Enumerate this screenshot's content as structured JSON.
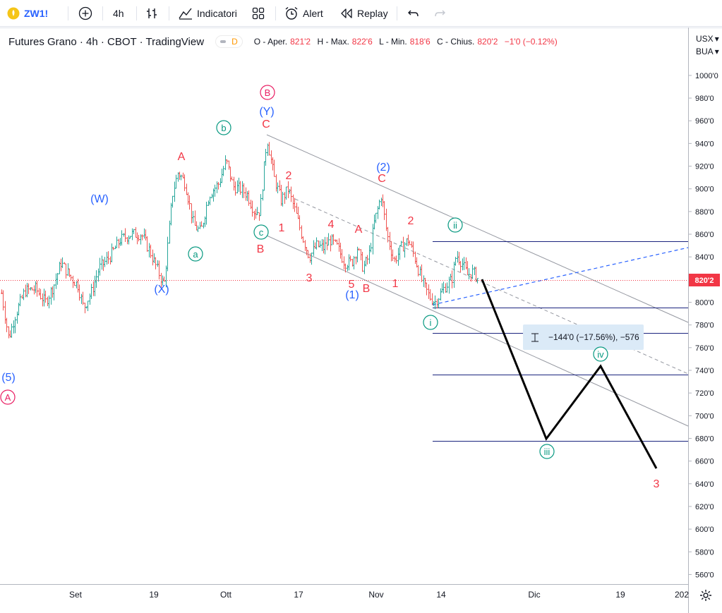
{
  "toolbar": {
    "symbol": "ZW1!",
    "interval": "4h",
    "indicators_label": "Indicatori",
    "alert_label": "Alert",
    "replay_label": "Replay",
    "icons": [
      "symbol-logo-icon",
      "add-symbol-icon",
      "bar-style-icon",
      "indicators-icon",
      "layouts-icon",
      "alert-icon",
      "replay-icon",
      "undo-icon",
      "redo-icon"
    ]
  },
  "legend": {
    "title": "Futures Grano · 4h · CBOT · TradingView",
    "badge_d": "D",
    "o_label": "O - Aper.",
    "o_value": "821'2",
    "h_label": "H - Max.",
    "h_value": "822'6",
    "l_label": "L - Min.",
    "l_value": "818'6",
    "c_label": "C - Chius.",
    "c_value": "820'2",
    "change": "−1'0 (−0.12%)"
  },
  "price_axis": {
    "currency": "USX",
    "currency_arrow": "▾",
    "unit": "BUA",
    "unit_arrow": "▾",
    "current_price": "820'2",
    "ticks": [
      "1000'0",
      "980'0",
      "960'0",
      "940'0",
      "920'0",
      "900'0",
      "880'0",
      "860'0",
      "840'0",
      "800'0",
      "780'0",
      "760'0",
      "740'0",
      "720'0",
      "700'0",
      "680'0",
      "660'0",
      "640'0",
      "620'0",
      "600'0",
      "580'0",
      "560'0"
    ]
  },
  "time_axis": {
    "ticks": [
      "Set",
      "19",
      "Ott",
      "17",
      "Nov",
      "14",
      "Dic",
      "19",
      "202"
    ]
  },
  "measure_label": "−144'0 (−17.56%), −576",
  "colors": {
    "up": "#26a69a",
    "down": "#ef5350",
    "blue": "#2962ff",
    "red": "#f23645",
    "green_wave": "#089981",
    "pink": "#e91e63",
    "channel": "#9598a1",
    "accent": "#2962ff"
  },
  "wave_labels": [
    {
      "text": "(5)",
      "color": "blue"
    },
    {
      "text": "A",
      "color": "pink",
      "circle": true
    },
    {
      "text": "(W)",
      "color": "blue"
    },
    {
      "text": "(X)",
      "color": "blue"
    },
    {
      "text": "A",
      "color": "red"
    },
    {
      "text": "a",
      "color": "green",
      "circle": true
    },
    {
      "text": "b",
      "color": "green",
      "circle": true
    },
    {
      "text": "B",
      "color": "pink",
      "circle": true
    },
    {
      "text": "(Y)",
      "color": "blue"
    },
    {
      "text": "C",
      "color": "red"
    },
    {
      "text": "c",
      "color": "green",
      "circle": true
    },
    {
      "text": "B",
      "color": "red"
    },
    {
      "text": "1",
      "color": "red"
    },
    {
      "text": "2",
      "color": "red"
    },
    {
      "text": "3",
      "color": "red"
    },
    {
      "text": "4",
      "color": "red"
    },
    {
      "text": "5",
      "color": "red"
    },
    {
      "text": "(1)",
      "color": "blue"
    },
    {
      "text": "B",
      "color": "red"
    },
    {
      "text": "A",
      "color": "red"
    },
    {
      "text": "(2)",
      "color": "blue"
    },
    {
      "text": "C",
      "color": "red"
    },
    {
      "text": "1",
      "color": "red"
    },
    {
      "text": "2",
      "color": "red"
    },
    {
      "text": "ii",
      "color": "green",
      "circle": true
    },
    {
      "text": "i",
      "color": "green",
      "circle": true
    },
    {
      "text": "iv",
      "color": "green",
      "circle": true
    },
    {
      "text": "iii",
      "color": "green",
      "circle": true
    },
    {
      "text": "3",
      "color": "red"
    }
  ]
}
